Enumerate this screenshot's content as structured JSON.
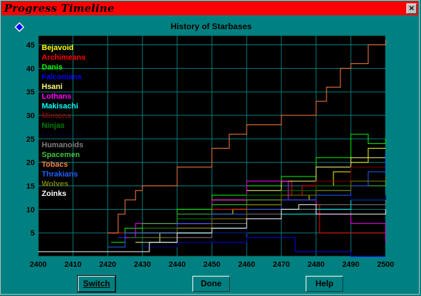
{
  "window": {
    "title": "Progress Timeline",
    "close_glyph": "×"
  },
  "controls": {
    "switch_label": "Switch",
    "done_label": "Done",
    "help_label": "Help"
  },
  "chart_data": {
    "type": "line",
    "title": "History of Starbases",
    "xlabel": "",
    "ylabel": "",
    "xlim": [
      2400,
      2500
    ],
    "ylim": [
      0,
      47
    ],
    "x_ticks": [
      2400,
      2410,
      2420,
      2430,
      2440,
      2450,
      2460,
      2470,
      2480,
      2490,
      2500
    ],
    "y_ticks": [
      5,
      10,
      15,
      20,
      25,
      30,
      35,
      40,
      45
    ],
    "grid": true,
    "background": "#000000",
    "grid_color": "#008080",
    "legend_position": "top-left",
    "series": [
      {
        "name": "Bejavoid",
        "color": "#ffff00",
        "points": [
          [
            2423,
            4
          ],
          [
            2430,
            5
          ],
          [
            2440,
            6
          ],
          [
            2450,
            9
          ],
          [
            2456,
            10
          ],
          [
            2460,
            11
          ],
          [
            2470,
            13
          ],
          [
            2478,
            12
          ],
          [
            2480,
            15
          ],
          [
            2485,
            18
          ],
          [
            2490,
            20
          ],
          [
            2495,
            23
          ],
          [
            2500,
            23
          ]
        ]
      },
      {
        "name": "Archimeans",
        "color": "#ff0000",
        "points": [
          [
            2420,
            5
          ],
          [
            2425,
            5
          ],
          [
            2430,
            6
          ],
          [
            2440,
            7
          ],
          [
            2450,
            10
          ],
          [
            2460,
            12
          ],
          [
            2470,
            16
          ],
          [
            2473,
            13
          ],
          [
            2476,
            15
          ],
          [
            2480,
            11
          ],
          [
            2481,
            5
          ],
          [
            2490,
            5
          ],
          [
            2500,
            5
          ]
        ]
      },
      {
        "name": "Danis",
        "color": "#00ff00",
        "points": [
          [
            2421,
            3
          ],
          [
            2425,
            6
          ],
          [
            2430,
            7
          ],
          [
            2440,
            10
          ],
          [
            2450,
            13
          ],
          [
            2460,
            15
          ],
          [
            2470,
            17
          ],
          [
            2480,
            21
          ],
          [
            2490,
            26
          ],
          [
            2495,
            24
          ],
          [
            2500,
            25
          ]
        ]
      },
      {
        "name": "Falconians",
        "color": "#0000ff",
        "points": [
          [
            2423,
            4
          ],
          [
            2430,
            4
          ],
          [
            2440,
            3
          ],
          [
            2450,
            3
          ],
          [
            2460,
            4
          ],
          [
            2466,
            4
          ],
          [
            2474,
            1
          ],
          [
            2480,
            1
          ],
          [
            2490,
            0
          ],
          [
            2500,
            0
          ]
        ]
      },
      {
        "name": "Hsani",
        "color": "#ffff80",
        "points": [
          [
            2428,
            3
          ],
          [
            2435,
            5
          ],
          [
            2440,
            7
          ],
          [
            2450,
            12
          ],
          [
            2460,
            14
          ],
          [
            2470,
            16
          ],
          [
            2480,
            19
          ],
          [
            2490,
            21
          ],
          [
            2500,
            21
          ]
        ]
      },
      {
        "name": "Lothans",
        "color": "#ff00ff",
        "points": [
          [
            2425,
            4
          ],
          [
            2428,
            7
          ],
          [
            2440,
            7
          ],
          [
            2450,
            12
          ],
          [
            2460,
            16
          ],
          [
            2468,
            16
          ],
          [
            2472,
            12
          ],
          [
            2480,
            9
          ],
          [
            2490,
            7
          ],
          [
            2500,
            3
          ]
        ]
      },
      {
        "name": "Makisachi",
        "color": "#00ffff",
        "points": [
          [
            2430,
            3
          ],
          [
            2440,
            5
          ],
          [
            2450,
            6
          ],
          [
            2460,
            8
          ],
          [
            2470,
            9
          ],
          [
            2480,
            10
          ],
          [
            2490,
            12
          ],
          [
            2500,
            13
          ]
        ]
      },
      {
        "name": "Mintons",
        "color": "#800000",
        "points": [
          [
            2432,
            2
          ],
          [
            2440,
            4
          ],
          [
            2450,
            8
          ],
          [
            2460,
            10
          ],
          [
            2470,
            12
          ],
          [
            2480,
            16
          ],
          [
            2490,
            19
          ],
          [
            2500,
            21
          ]
        ]
      },
      {
        "name": "Ninjas",
        "color": "#008000",
        "points": [
          [
            2426,
            4
          ],
          [
            2430,
            6
          ],
          [
            2440,
            8
          ],
          [
            2450,
            11
          ],
          [
            2460,
            13
          ],
          [
            2470,
            14
          ],
          [
            2480,
            15
          ],
          [
            2490,
            15
          ],
          [
            2500,
            16
          ]
        ]
      },
      {
        "name": "",
        "color": "#000080",
        "points": [
          [
            2430,
            2
          ],
          [
            2440,
            3
          ],
          [
            2450,
            5
          ],
          [
            2460,
            8
          ],
          [
            2470,
            12
          ],
          [
            2480,
            13
          ],
          [
            2490,
            12
          ],
          [
            2500,
            13
          ]
        ]
      },
      {
        "name": "Humanoids",
        "color": "#808080",
        "points": [
          [
            2430,
            3
          ],
          [
            2440,
            4
          ],
          [
            2450,
            7
          ],
          [
            2460,
            9
          ],
          [
            2470,
            10
          ],
          [
            2480,
            11
          ],
          [
            2490,
            11
          ],
          [
            2500,
            12
          ]
        ]
      },
      {
        "name": "Spacemen",
        "color": "#40c040",
        "points": [
          [
            2425,
            5
          ],
          [
            2430,
            7
          ],
          [
            2440,
            9
          ],
          [
            2450,
            11
          ],
          [
            2460,
            12
          ],
          [
            2470,
            13
          ],
          [
            2480,
            14
          ],
          [
            2490,
            15
          ],
          [
            2500,
            16
          ]
        ]
      },
      {
        "name": "Tobacs",
        "color": "#ff8040",
        "points": [
          [
            2420,
            5
          ],
          [
            2423,
            9
          ],
          [
            2425,
            12
          ],
          [
            2428,
            14
          ],
          [
            2430,
            15
          ],
          [
            2440,
            19
          ],
          [
            2450,
            23
          ],
          [
            2455,
            26
          ],
          [
            2460,
            28
          ],
          [
            2470,
            30
          ],
          [
            2480,
            33
          ],
          [
            2483,
            36
          ],
          [
            2487,
            40
          ],
          [
            2490,
            41
          ],
          [
            2495,
            45
          ],
          [
            2500,
            46
          ]
        ]
      },
      {
        "name": "Thrakians",
        "color": "#2060ff",
        "points": [
          [
            2420,
            2
          ],
          [
            2425,
            5
          ],
          [
            2440,
            7
          ],
          [
            2450,
            9
          ],
          [
            2460,
            10
          ],
          [
            2470,
            12
          ],
          [
            2480,
            13
          ],
          [
            2490,
            15
          ],
          [
            2495,
            18
          ],
          [
            2500,
            22
          ]
        ]
      },
      {
        "name": "Wolves",
        "color": "#808000",
        "points": [
          [
            2430,
            4
          ],
          [
            2440,
            6
          ],
          [
            2450,
            8
          ],
          [
            2460,
            11
          ],
          [
            2470,
            13
          ],
          [
            2480,
            14
          ],
          [
            2490,
            16
          ],
          [
            2500,
            17
          ]
        ]
      },
      {
        "name": "Zoinks",
        "color": "#ffffff",
        "points": [
          [
            2400,
            1
          ],
          [
            2422,
            1
          ],
          [
            2428,
            1
          ],
          [
            2432,
            3
          ],
          [
            2440,
            5
          ],
          [
            2450,
            6
          ],
          [
            2460,
            8
          ],
          [
            2470,
            10
          ],
          [
            2475,
            11
          ],
          [
            2480,
            9
          ],
          [
            2490,
            9
          ],
          [
            2500,
            10
          ]
        ]
      }
    ]
  }
}
